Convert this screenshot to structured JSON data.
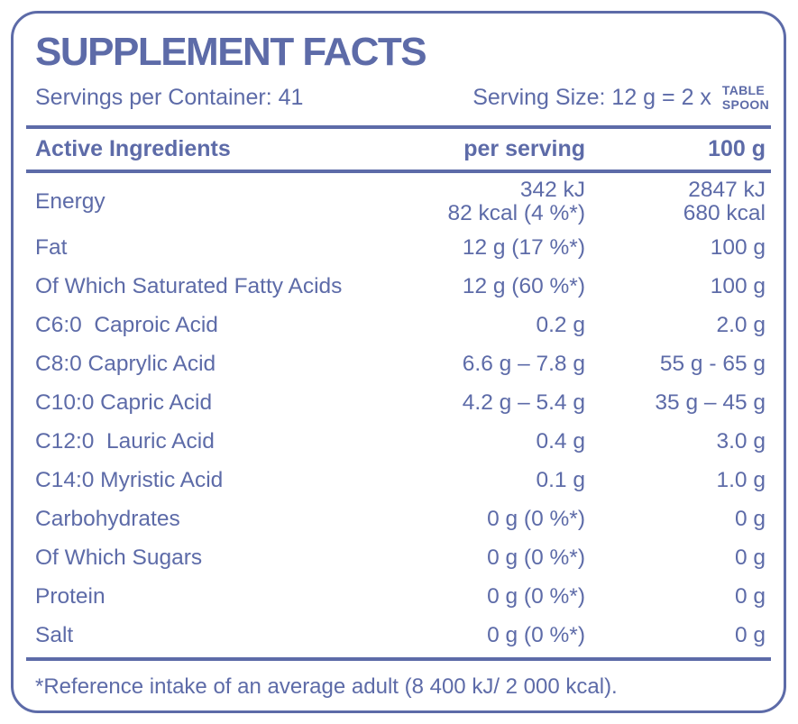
{
  "colors": {
    "accent_blue": "#5d6ba8",
    "background": "#ffffff"
  },
  "panel": {
    "title": "SUPPLEMENT FACTS",
    "servings_per_container": "Servings per Container: 41",
    "serving_size": "Serving Size: 12 g = 2 x",
    "serving_unit": [
      "TABLE",
      "SPOON"
    ],
    "footnote": "*Reference intake of an average adult (8 400 kJ/ 2 000 kcal)."
  },
  "table": {
    "headers": {
      "ingredient": "Active Ingredients",
      "per_serving": "per serving",
      "per_100g": "100 g"
    },
    "rows": [
      {
        "label": "Energy",
        "per_serving": [
          "342 kJ",
          "82 kcal (4 %*)"
        ],
        "per_100g": [
          "2847 kJ",
          "680 kcal"
        ]
      },
      {
        "label": "Fat",
        "per_serving": [
          "12 g (17 %*)"
        ],
        "per_100g": [
          "100 g"
        ]
      },
      {
        "label": "Of Which Saturated Fatty Acids",
        "per_serving": [
          "12 g (60 %*)"
        ],
        "per_100g": [
          "100 g"
        ]
      },
      {
        "label": "C6:0  Caproic Acid",
        "per_serving": [
          "0.2 g"
        ],
        "per_100g": [
          "2.0 g"
        ]
      },
      {
        "label": "C8:0 Caprylic Acid",
        "per_serving": [
          "6.6 g – 7.8 g"
        ],
        "per_100g": [
          "55 g - 65 g"
        ]
      },
      {
        "label": "C10:0 Capric Acid",
        "per_serving": [
          "4.2 g – 5.4 g"
        ],
        "per_100g": [
          "35 g – 45 g"
        ]
      },
      {
        "label": "C12:0  Lauric Acid",
        "per_serving": [
          "0.4 g"
        ],
        "per_100g": [
          "3.0 g"
        ]
      },
      {
        "label": "C14:0 Myristic Acid",
        "per_serving": [
          "0.1 g"
        ],
        "per_100g": [
          "1.0 g"
        ]
      },
      {
        "label": "Carbohydrates",
        "per_serving": [
          "0 g (0 %*)"
        ],
        "per_100g": [
          "0 g"
        ]
      },
      {
        "label": "Of Which Sugars",
        "per_serving": [
          "0 g (0 %*)"
        ],
        "per_100g": [
          "0 g"
        ]
      },
      {
        "label": "Protein",
        "per_serving": [
          "0 g (0 %*)"
        ],
        "per_100g": [
          "0 g"
        ]
      },
      {
        "label": "Salt",
        "per_serving": [
          "0 g (0 %*)"
        ],
        "per_100g": [
          "0 g"
        ]
      }
    ]
  }
}
